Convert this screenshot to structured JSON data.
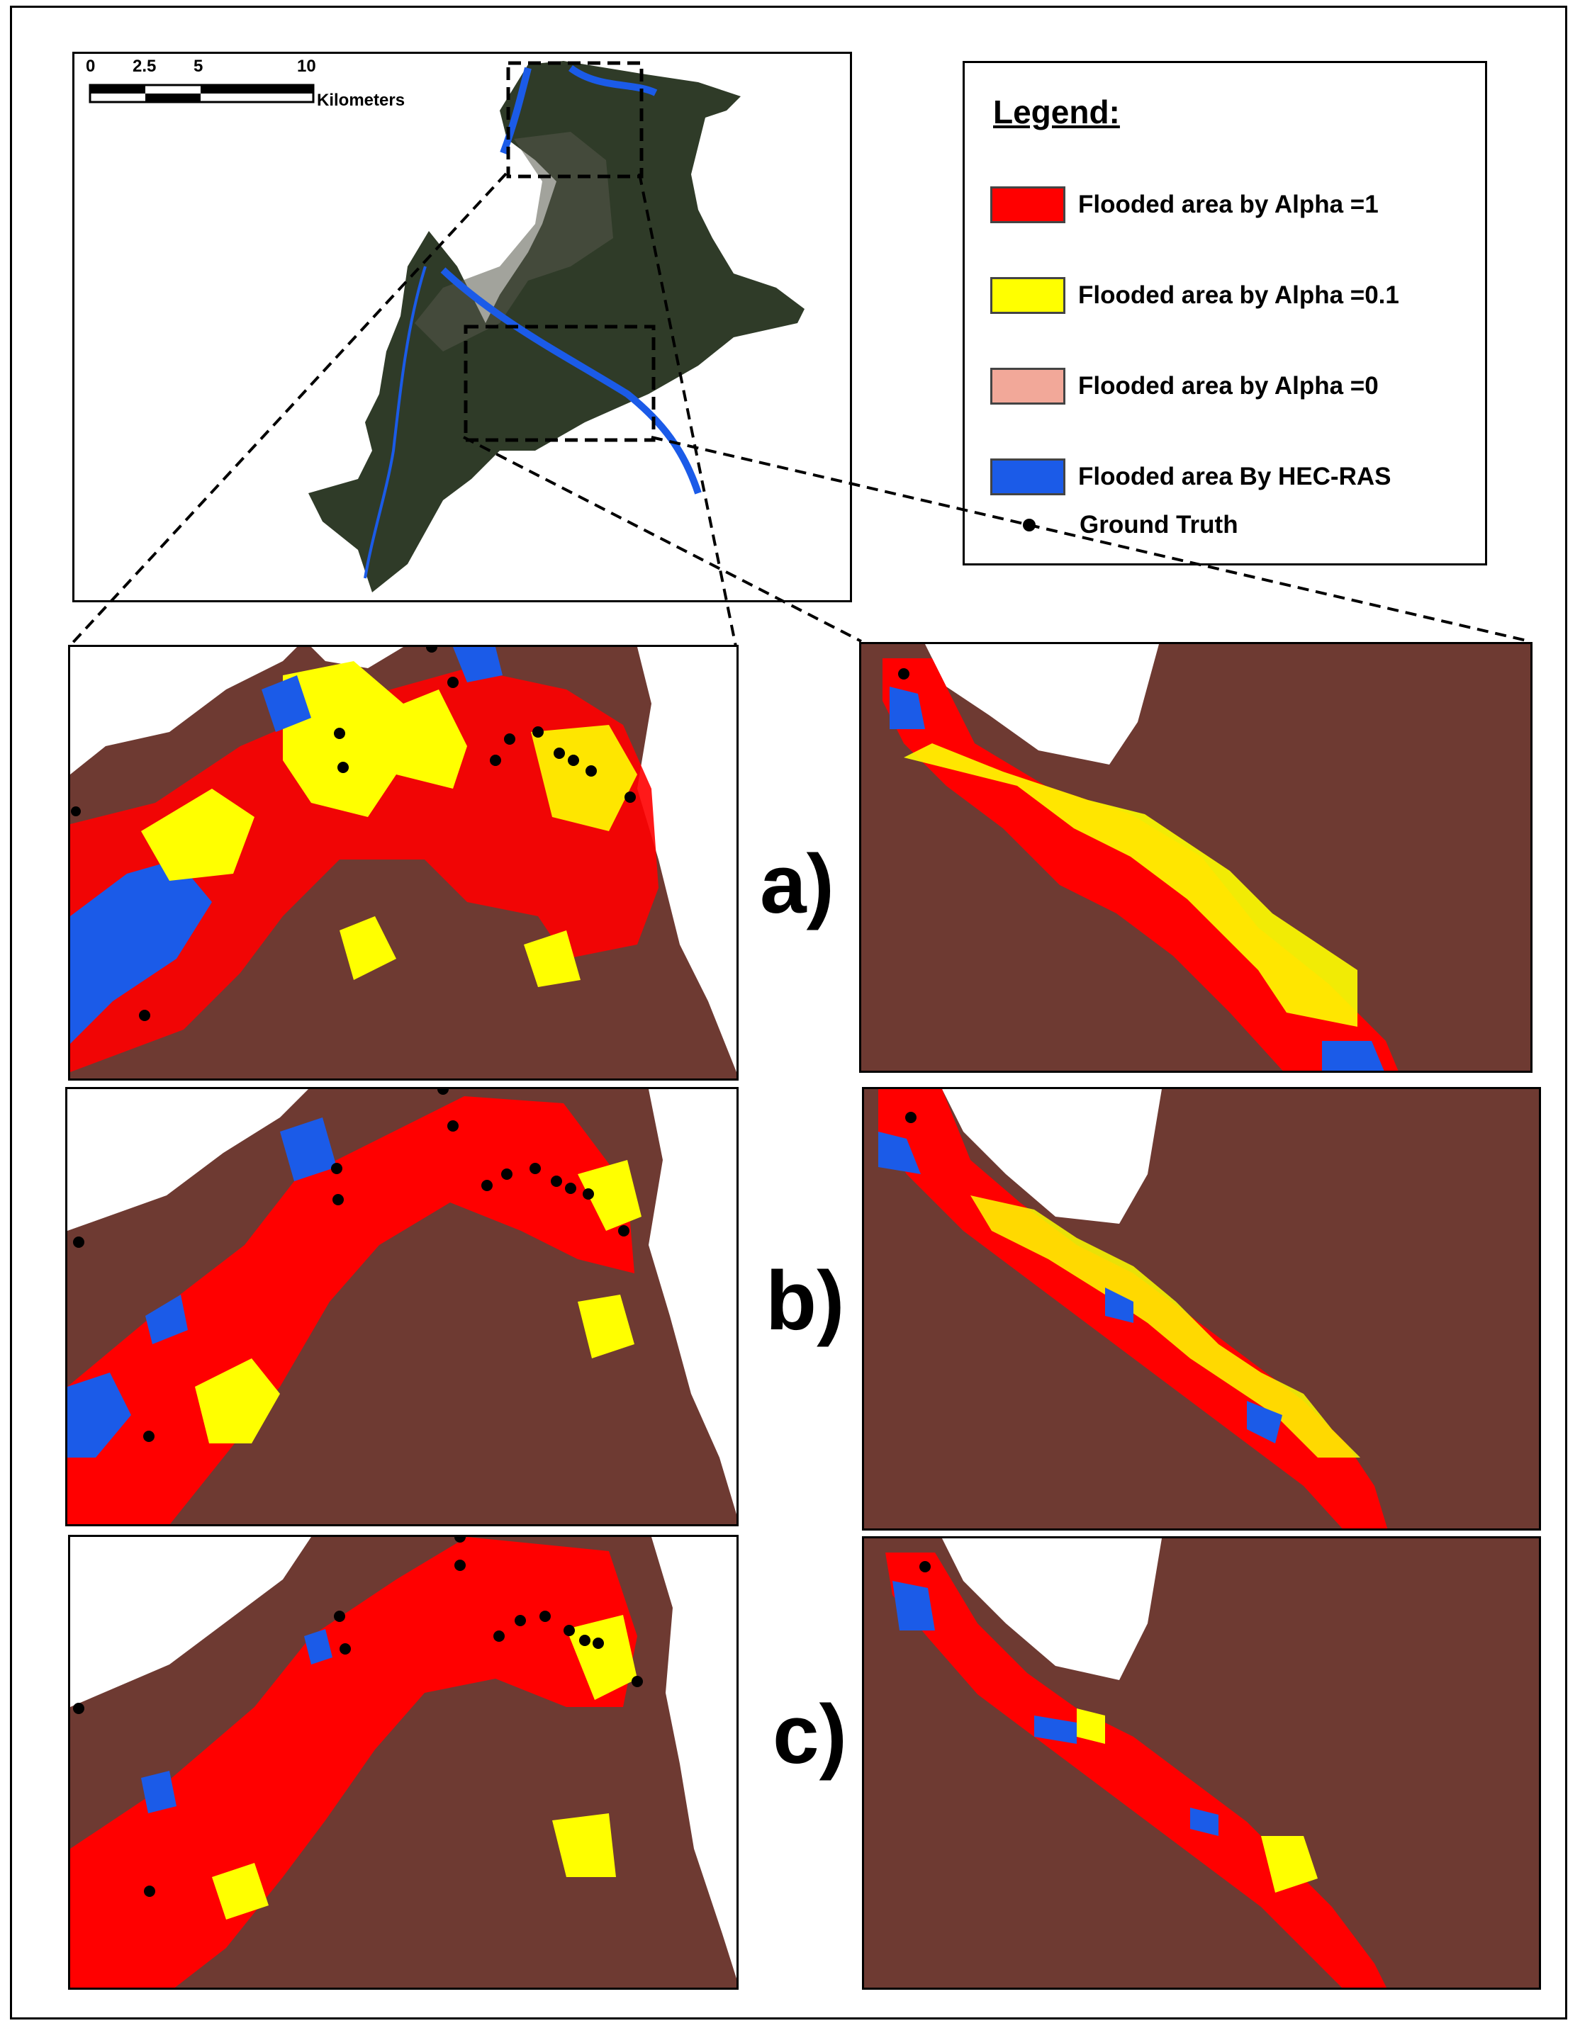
{
  "scale_bar": {
    "ticks": [
      "0",
      "2.5",
      "5",
      "10"
    ],
    "unit": "Kilometers"
  },
  "legend": {
    "title": "Legend:",
    "items": [
      {
        "label": "Flooded area by Alpha =1",
        "color": "#ff0000",
        "symbol": "swatch"
      },
      {
        "label": "Flooded area by Alpha =0.1",
        "color": "#ffff00",
        "symbol": "swatch"
      },
      {
        "label": "Flooded area by Alpha =0",
        "color": "#f2a899",
        "symbol": "swatch"
      },
      {
        "label": "Flooded area By HEC-RAS",
        "color": "#1b5be8",
        "symbol": "swatch"
      },
      {
        "label": "Ground Truth",
        "color": "#000000",
        "symbol": "dot"
      }
    ]
  },
  "row_labels": [
    "a)",
    "b)",
    "c)"
  ],
  "colors": {
    "alpha1": "#ff0000",
    "alpha01": "#ffff00",
    "hecras": "#1b5be8",
    "background_satellite": "#6e3a32",
    "overview_terrain": "#2f3b28"
  }
}
